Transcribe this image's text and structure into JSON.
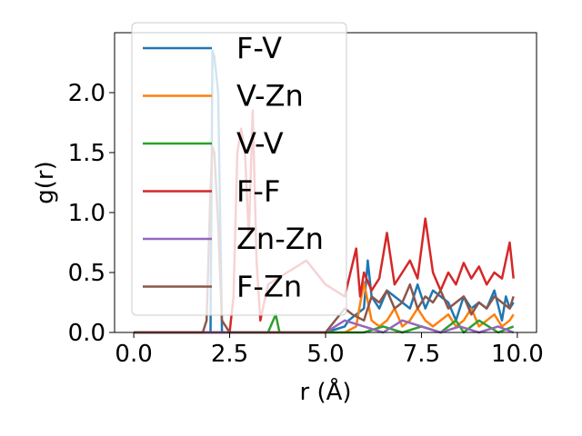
{
  "chart_data": {
    "type": "line",
    "title": "",
    "xlabel": "r (Å)",
    "ylabel": "g(r)",
    "xlim": [
      -0.5,
      10.5
    ],
    "ylim": [
      0.0,
      2.5
    ],
    "xticks": [
      0.0,
      2.5,
      5.0,
      7.5,
      10.0
    ],
    "xtick_labels": [
      "0.0",
      "2.5",
      "5.0",
      "7.5",
      "10.0"
    ],
    "yticks": [
      0.0,
      0.5,
      1.0,
      1.5,
      2.0
    ],
    "ytick_labels": [
      "0.0",
      "0.5",
      "1.0",
      "1.5",
      "2.0"
    ],
    "grid": false,
    "legend_position": "top-left",
    "series": [
      {
        "name": "F-V",
        "color": "#1f77b4",
        "x": [
          0.0,
          1.8,
          1.9,
          2.0,
          2.05,
          2.1,
          2.2,
          2.3,
          2.5,
          3.0,
          3.5,
          4.0,
          4.5,
          5.0,
          5.5,
          5.6,
          5.8,
          6.0,
          6.1,
          6.2,
          6.4,
          6.6,
          6.8,
          7.0,
          7.2,
          7.4,
          7.6,
          7.8,
          8.0,
          8.2,
          8.4,
          8.6,
          8.8,
          9.0,
          9.2,
          9.4,
          9.6,
          9.7,
          9.8,
          9.9
        ],
        "y": [
          0.0,
          0.0,
          0.0,
          0.0,
          2.35,
          2.3,
          2.0,
          0.0,
          0.0,
          0.0,
          0.0,
          0.0,
          0.0,
          0.0,
          0.05,
          0.1,
          0.15,
          0.2,
          0.6,
          0.3,
          0.2,
          0.35,
          0.3,
          0.25,
          0.2,
          0.4,
          0.2,
          0.35,
          0.3,
          0.25,
          0.1,
          0.3,
          0.2,
          0.25,
          0.2,
          0.35,
          0.1,
          0.3,
          0.2,
          0.25
        ]
      },
      {
        "name": "V-Zn",
        "color": "#ff7f0e",
        "x": [
          0.0,
          3.0,
          3.5,
          4.0,
          4.5,
          5.0,
          5.5,
          5.8,
          6.0,
          6.2,
          6.4,
          6.6,
          6.8,
          7.0,
          7.2,
          7.4,
          7.6,
          7.8,
          8.0,
          8.2,
          8.4,
          8.6,
          8.8,
          9.0,
          9.2,
          9.4,
          9.6,
          9.8,
          9.9
        ],
        "y": [
          0.0,
          0.0,
          0.0,
          0.0,
          0.0,
          0.0,
          0.0,
          0.05,
          0.42,
          0.1,
          0.05,
          0.1,
          0.2,
          0.05,
          0.1,
          0.2,
          0.1,
          0.05,
          0.1,
          0.15,
          0.05,
          0.1,
          0.2,
          0.05,
          0.1,
          0.15,
          0.05,
          0.1,
          0.15
        ]
      },
      {
        "name": "V-V",
        "color": "#2ca02c",
        "x": [
          0.0,
          3.0,
          3.5,
          3.7,
          3.8,
          4.0,
          4.5,
          5.0,
          5.5,
          6.0,
          6.5,
          7.0,
          7.5,
          8.0,
          8.2,
          8.4,
          8.6,
          8.8,
          9.0,
          9.5,
          9.9
        ],
        "y": [
          0.0,
          0.0,
          0.0,
          0.15,
          0.0,
          0.0,
          0.0,
          0.0,
          0.0,
          0.0,
          0.05,
          0.0,
          0.05,
          0.0,
          0.05,
          0.1,
          0.0,
          0.05,
          0.1,
          0.0,
          0.05
        ]
      },
      {
        "name": "F-F",
        "color": "#d62728",
        "x": [
          0.0,
          2.5,
          2.6,
          2.7,
          2.8,
          2.9,
          3.0,
          3.1,
          3.2,
          3.3,
          3.5,
          4.0,
          4.5,
          5.0,
          5.5,
          5.8,
          5.9,
          6.0,
          6.2,
          6.4,
          6.6,
          6.8,
          7.0,
          7.2,
          7.4,
          7.6,
          7.8,
          8.0,
          8.2,
          8.4,
          8.6,
          8.8,
          9.0,
          9.2,
          9.4,
          9.6,
          9.8,
          9.9
        ],
        "y": [
          0.0,
          0.0,
          0.3,
          1.5,
          1.7,
          1.5,
          0.8,
          1.85,
          0.6,
          0.1,
          0.4,
          0.5,
          0.6,
          0.4,
          0.3,
          0.7,
          0.3,
          0.5,
          0.35,
          0.45,
          0.83,
          0.4,
          0.5,
          0.6,
          0.45,
          0.95,
          0.5,
          0.35,
          0.5,
          0.4,
          0.58,
          0.45,
          0.55,
          0.4,
          0.5,
          0.45,
          0.75,
          0.45
        ]
      },
      {
        "name": "Zn-Zn",
        "color": "#9467bd",
        "x": [
          0.0,
          3.0,
          3.5,
          4.0,
          4.5,
          5.0,
          5.5,
          6.0,
          6.5,
          7.0,
          7.5,
          8.0,
          8.5,
          9.0,
          9.5,
          9.9
        ],
        "y": [
          0.0,
          0.0,
          0.0,
          0.0,
          0.0,
          0.0,
          0.1,
          0.05,
          0.0,
          0.1,
          0.05,
          0.0,
          0.05,
          0.0,
          0.05,
          0.0
        ]
      },
      {
        "name": "F-Zn",
        "color": "#8c564b",
        "x": [
          0.0,
          1.8,
          1.9,
          2.0,
          2.05,
          2.1,
          2.2,
          2.3,
          2.5,
          3.0,
          4.0,
          5.0,
          5.5,
          5.7,
          6.0,
          6.2,
          6.4,
          6.6,
          6.8,
          7.0,
          7.2,
          7.4,
          7.6,
          7.8,
          8.0,
          8.2,
          8.4,
          8.6,
          8.8,
          9.0,
          9.2,
          9.4,
          9.6,
          9.8,
          9.9
        ],
        "y": [
          0.0,
          0.0,
          0.1,
          1.2,
          1.55,
          1.5,
          0.9,
          0.1,
          0.0,
          0.0,
          0.0,
          0.0,
          0.2,
          0.15,
          0.1,
          0.3,
          0.25,
          0.35,
          0.2,
          0.25,
          0.4,
          0.2,
          0.3,
          0.25,
          0.35,
          0.2,
          0.25,
          0.3,
          0.15,
          0.25,
          0.2,
          0.3,
          0.25,
          0.2,
          0.3
        ]
      }
    ]
  }
}
